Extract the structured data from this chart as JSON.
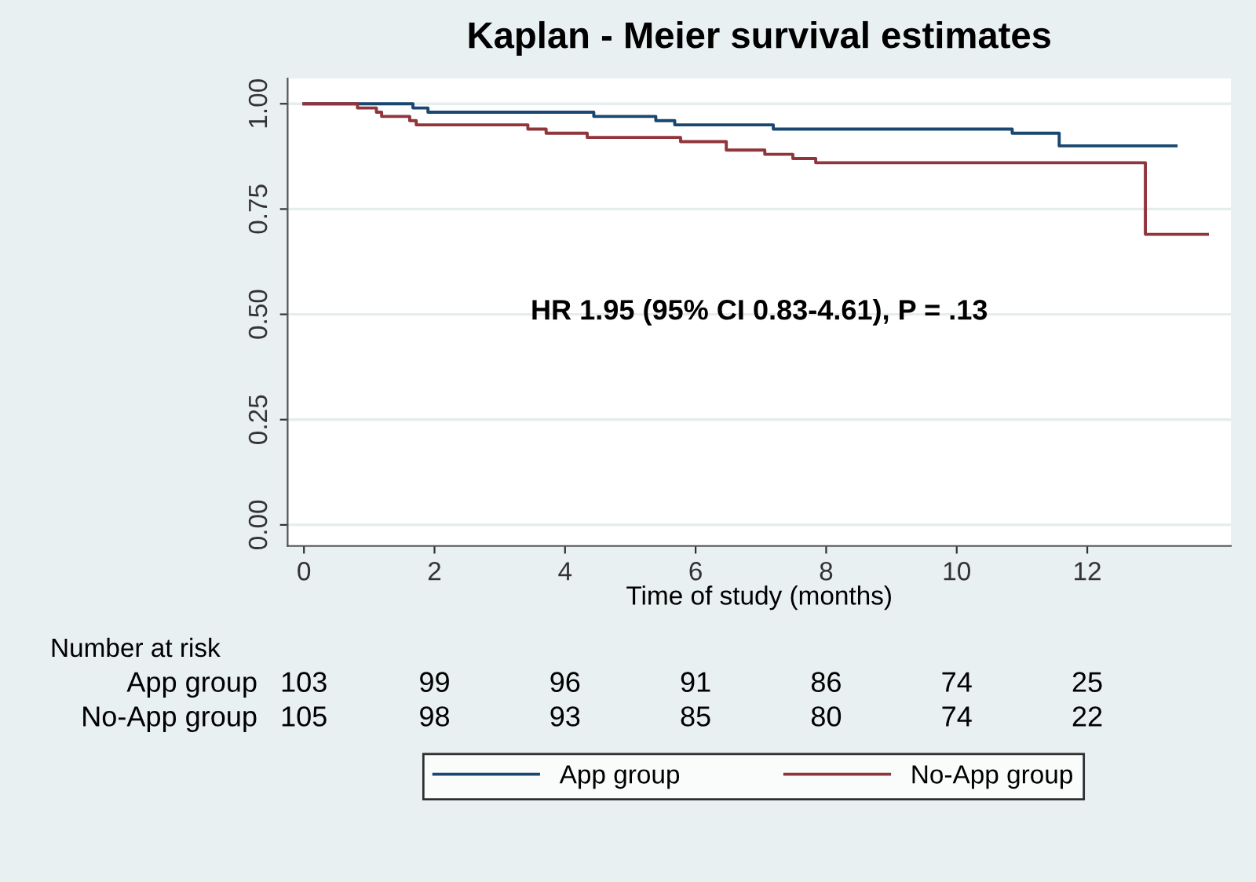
{
  "chart_data": {
    "type": "step",
    "title": "Kaplan - Meier survival estimates",
    "xlabel": "Time of study (months)",
    "xlim": [
      -0.25,
      14.2
    ],
    "ylim": [
      -0.05,
      1.06
    ],
    "xticks": [
      0,
      2,
      4,
      6,
      8,
      10,
      12
    ],
    "yticks": [
      {
        "value": 0,
        "label": "0.00"
      },
      {
        "value": 0.25,
        "label": "0.25"
      },
      {
        "value": 0.5,
        "label": "0.50"
      },
      {
        "value": 0.75,
        "label": "0.75"
      },
      {
        "value": 1,
        "label": "1.00"
      }
    ],
    "grid": "y",
    "legend": "bottom",
    "line_style": "solid",
    "series": [
      {
        "name": "App group",
        "color": "#1a476f",
        "x": [
          0,
          1.67,
          1.9,
          4.44,
          5.39,
          5.68,
          7.19,
          10.85,
          11.57,
          13.36
        ],
        "values": [
          1.0,
          0.99,
          0.98,
          0.97,
          0.96,
          0.95,
          0.94,
          0.93,
          0.9,
          0.9
        ]
      },
      {
        "name": "No-App group",
        "color": "#90353b",
        "x": [
          0,
          0.82,
          1.11,
          1.19,
          1.62,
          1.72,
          3.43,
          3.71,
          4.34,
          5.77,
          6.47,
          7.06,
          7.49,
          7.84,
          12.89,
          13.84
        ],
        "values": [
          1.0,
          0.99,
          0.98,
          0.97,
          0.96,
          0.95,
          0.94,
          0.93,
          0.92,
          0.91,
          0.89,
          0.88,
          0.87,
          0.86,
          0.69,
          0.69
        ]
      }
    ],
    "annotations": [
      "HR 1.95 (95% CI 0.83-4.61), P = .13",
      "Number at risk",
      "App group",
      "103",
      "99",
      "96",
      "91",
      "86",
      "74",
      "25",
      "No-App group",
      "105",
      "98",
      "93",
      "85",
      "80",
      "74",
      "22"
    ]
  }
}
